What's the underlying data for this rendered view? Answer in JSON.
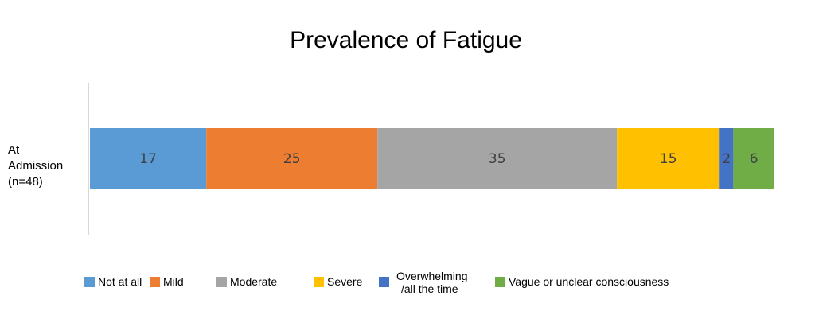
{
  "chart_data": {
    "type": "bar",
    "orientation": "horizontal",
    "stacked": true,
    "title": "Prevalence of Fatigue",
    "categories": [
      [
        "At",
        "Admission",
        "(n=48)"
      ]
    ],
    "series": [
      {
        "name": "Not at all",
        "values": [
          17
        ],
        "color": "#5B9BD5"
      },
      {
        "name": "Mild",
        "values": [
          25
        ],
        "color": "#ED7D31"
      },
      {
        "name": "Moderate",
        "values": [
          35
        ],
        "color": "#A5A5A5"
      },
      {
        "name": "Severe",
        "values": [
          15
        ],
        "color": "#FFC000"
      },
      {
        "name": "Overwhelming /all the time",
        "legend_lines": [
          "Overwhelming",
          "/all the time"
        ],
        "values": [
          2
        ],
        "color": "#4472C4"
      },
      {
        "name": "Vague or unclear consciousness",
        "values": [
          6
        ],
        "color": "#70AD47"
      }
    ],
    "xlim": [
      0,
      100
    ],
    "grid": false,
    "legend": "bottom"
  }
}
